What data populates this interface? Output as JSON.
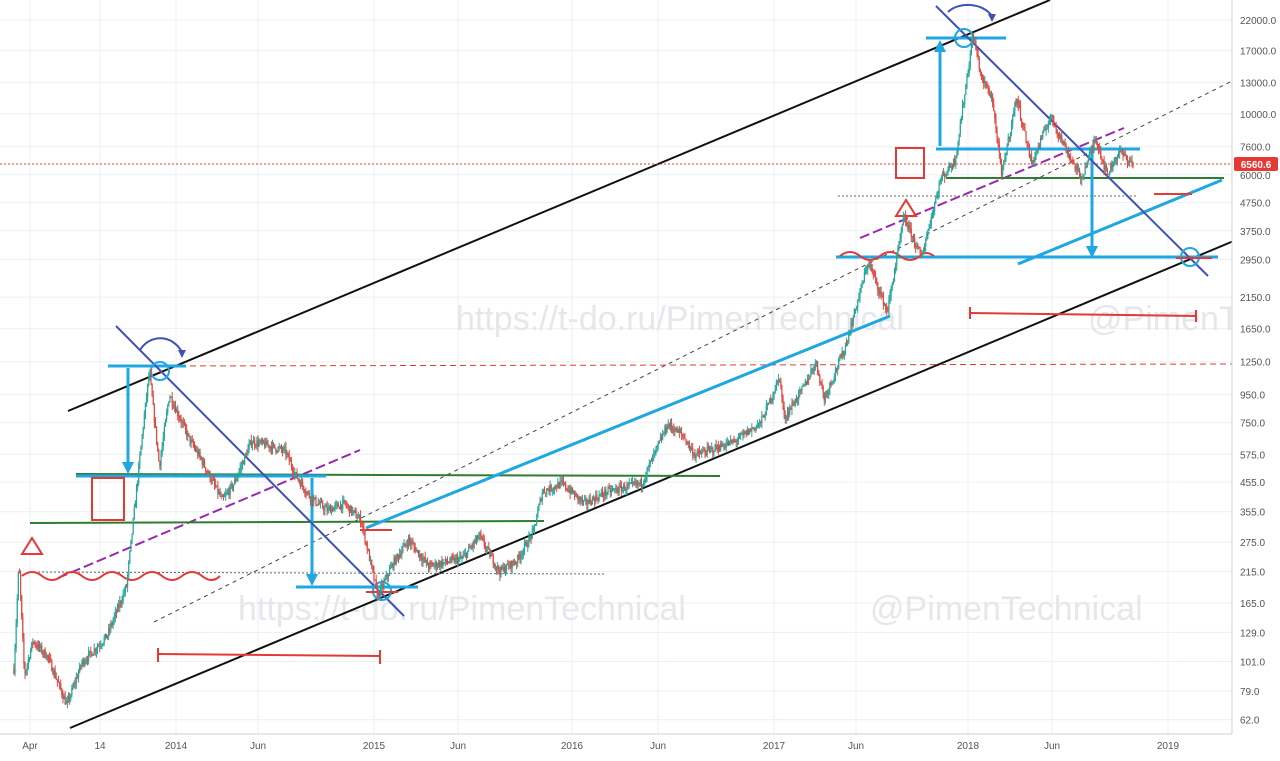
{
  "chart_data": {
    "type": "candlestick",
    "scale": "log",
    "ylim": [
      55,
      26000
    ],
    "y_ticks": [
      "22000.0",
      "17000.0",
      "13000.0",
      "10000.0",
      "7600.0",
      "6000.0",
      "4750.0",
      "3750.0",
      "2950.0",
      "2150.0",
      "1650.0",
      "1250.0",
      "950.0",
      "750.0",
      "575.0",
      "455.0",
      "355.0",
      "275.0",
      "215.0",
      "165.0",
      "129.0",
      "101.0",
      "79.0",
      "62.0"
    ],
    "x_ticks": [
      "Apr",
      "14",
      "2014",
      "Jun",
      "2015",
      "Jun",
      "2016",
      "Jun",
      "2017",
      "Jun",
      "2018",
      "Jun",
      "2019"
    ],
    "last_price": "6560.6",
    "grid": true,
    "price_path": [
      [
        "2013-04-01",
        95
      ],
      [
        "2013-04-10",
        230
      ],
      [
        "2013-04-20",
        90
      ],
      [
        "2013-05-05",
        120
      ],
      [
        "2013-06-01",
        105
      ],
      [
        "2013-07-05",
        70
      ],
      [
        "2013-08-01",
        100
      ],
      [
        "2013-09-15",
        125
      ],
      [
        "2013-10-20",
        190
      ],
      [
        "2013-11-18",
        700
      ],
      [
        "2013-11-30",
        1150
      ],
      [
        "2013-12-18",
        520
      ],
      [
        "2014-01-05",
        950
      ],
      [
        "2014-02-10",
        650
      ],
      [
        "2014-03-01",
        560
      ],
      [
        "2014-04-10",
        390
      ],
      [
        "2014-05-01",
        450
      ],
      [
        "2014-06-01",
        640
      ],
      [
        "2014-07-01",
        620
      ],
      [
        "2014-08-01",
        590
      ],
      [
        "2014-08-20",
        480
      ],
      [
        "2014-09-15",
        400
      ],
      [
        "2014-10-15",
        360
      ],
      [
        "2014-11-15",
        380
      ],
      [
        "2014-12-15",
        330
      ],
      [
        "2015-01-14",
        175
      ],
      [
        "2015-02-10",
        230
      ],
      [
        "2015-03-10",
        280
      ],
      [
        "2015-04-15",
        225
      ],
      [
        "2015-06-15",
        240
      ],
      [
        "2015-07-15",
        290
      ],
      [
        "2015-08-20",
        215
      ],
      [
        "2015-09-20",
        235
      ],
      [
        "2015-10-20",
        300
      ],
      [
        "2015-11-05",
        420
      ],
      [
        "2015-12-10",
        450
      ],
      [
        "2016-01-20",
        380
      ],
      [
        "2016-03-01",
        420
      ],
      [
        "2016-05-01",
        450
      ],
      [
        "2016-06-17",
        740
      ],
      [
        "2016-07-15",
        670
      ],
      [
        "2016-08-05",
        570
      ],
      [
        "2016-10-15",
        640
      ],
      [
        "2016-12-01",
        750
      ],
      [
        "2017-01-04",
        1100
      ],
      [
        "2017-01-12",
        780
      ],
      [
        "2017-02-15",
        1000
      ],
      [
        "2017-03-10",
        1250
      ],
      [
        "2017-03-25",
        920
      ],
      [
        "2017-05-01",
        1400
      ],
      [
        "2017-06-12",
        2900
      ],
      [
        "2017-07-16",
        1900
      ],
      [
        "2017-08-15",
        4200
      ],
      [
        "2017-09-15",
        3000
      ],
      [
        "2017-10-20",
        5800
      ],
      [
        "2017-11-15",
        6800
      ],
      [
        "2017-12-17",
        19500
      ],
      [
        "2018-01-01",
        13500
      ],
      [
        "2018-01-20",
        11500
      ],
      [
        "2018-02-06",
        6000
      ],
      [
        "2018-03-05",
        11500
      ],
      [
        "2018-04-01",
        6600
      ],
      [
        "2018-05-05",
        9800
      ],
      [
        "2018-06-01",
        7500
      ],
      [
        "2018-06-29",
        5800
      ],
      [
        "2018-07-25",
        8200
      ],
      [
        "2018-08-14",
        6000
      ],
      [
        "2018-09-05",
        7300
      ],
      [
        "2018-09-30",
        6560.6
      ]
    ]
  }
}
